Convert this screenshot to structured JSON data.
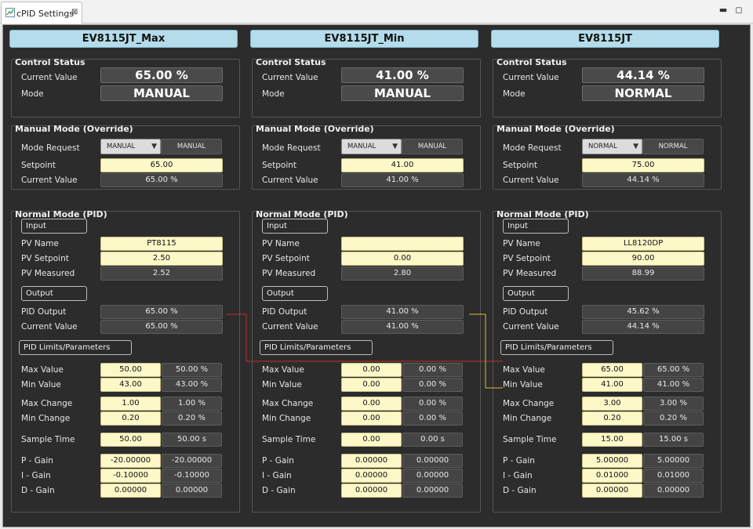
{
  "tab": {
    "title": "cPID Settings",
    "close": "⊠"
  },
  "window_controls": {
    "minimize": "▬",
    "maximize": "◻"
  },
  "labels": {
    "control_status": "Control Status",
    "current_value": "Current Value",
    "mode": "Mode",
    "manual_mode": "Manual Mode (Override)",
    "mode_request": "Mode Request",
    "setpoint": "Setpoint",
    "normal_mode": "Normal Mode (PID)",
    "input": "Input",
    "pv_name": "PV Name",
    "pv_setpoint": "PV Setpoint",
    "pv_measured": "PV Measured",
    "output": "Output",
    "pid_output": "PID Output",
    "pid_limits": "PID Limits/Parameters",
    "max_value": "Max Value",
    "min_value": "Min Value",
    "max_change": "Max Change",
    "min_change": "Min Change",
    "sample_time": "Sample Time",
    "p_gain": "P - Gain",
    "i_gain": "I - Gain",
    "d_gain": "D - Gain"
  },
  "columns": [
    {
      "name": "EV8115JT_Max",
      "status": {
        "current_value": "65.00 %",
        "mode": "MANUAL"
      },
      "manual": {
        "mode_request": "MANUAL",
        "mode_value": "MANUAL",
        "setpoint": "65.00",
        "current_value": "65.00 %"
      },
      "input": {
        "pv_name": "PT8115",
        "pv_setpoint": "2.50",
        "pv_measured": "2.52"
      },
      "output": {
        "pid_output": "65.00 %",
        "current_value": "65.00 %"
      },
      "limits": {
        "max_value": "50.00",
        "max_value_pct": "50.00 %",
        "min_value": "43.00",
        "min_value_pct": "43.00 %",
        "max_change": "1.00",
        "max_change_pct": "1.00 %",
        "min_change": "0.20",
        "min_change_pct": "0.20 %",
        "sample_time": "50.00",
        "sample_time_s": "50.00 s",
        "p_gain": "-20.00000",
        "p_gain_r": "-20.00000",
        "i_gain": "-0.10000",
        "i_gain_r": "-0.10000",
        "d_gain": "0.00000",
        "d_gain_r": "0.00000"
      }
    },
    {
      "name": "EV8115JT_Min",
      "status": {
        "current_value": "41.00 %",
        "mode": "MANUAL"
      },
      "manual": {
        "mode_request": "MANUAL",
        "mode_value": "MANUAL",
        "setpoint": "41.00",
        "current_value": "41.00 %"
      },
      "input": {
        "pv_name": "",
        "pv_setpoint": "0.00",
        "pv_measured": "2.80"
      },
      "output": {
        "pid_output": "41.00 %",
        "current_value": "41.00 %"
      },
      "limits": {
        "max_value": "0.00",
        "max_value_pct": "0.00 %",
        "min_value": "0.00",
        "min_value_pct": "0.00 %",
        "max_change": "0.00",
        "max_change_pct": "0.00 %",
        "min_change": "0.00",
        "min_change_pct": "0.00 %",
        "sample_time": "0.00",
        "sample_time_s": "0.00 s",
        "p_gain": "0.00000",
        "p_gain_r": "0.00000",
        "i_gain": "0.00000",
        "i_gain_r": "0.00000",
        "d_gain": "0.00000",
        "d_gain_r": "0.00000"
      }
    },
    {
      "name": "EV8115JT",
      "status": {
        "current_value": "44.14 %",
        "mode": "NORMAL"
      },
      "manual": {
        "mode_request": "NORMAL",
        "mode_value": "NORMAL",
        "setpoint": "75.00",
        "current_value": "44.14 %"
      },
      "input": {
        "pv_name": "LL8120DP",
        "pv_setpoint": "90.00",
        "pv_measured": "88.99"
      },
      "output": {
        "pid_output": "45.62 %",
        "current_value": "44.14 %"
      },
      "limits": {
        "max_value": "65.00",
        "max_value_pct": "65.00 %",
        "min_value": "41.00",
        "min_value_pct": "41.00 %",
        "max_change": "3.00",
        "max_change_pct": "3.00 %",
        "min_change": "0.20",
        "min_change_pct": "0.20 %",
        "sample_time": "15.00",
        "sample_time_s": "15.00 s",
        "p_gain": "5.00000",
        "p_gain_r": "5.00000",
        "i_gain": "0.01000",
        "i_gain_r": "0.01000",
        "d_gain": "0.00000",
        "d_gain_r": "0.00000"
      }
    }
  ],
  "colors": {
    "background": "#2c2c2c",
    "header": "#b4dcea",
    "input_field": "#fdf8c8",
    "wire_red": "#c0302a",
    "wire_yellow": "#d8c22a"
  }
}
